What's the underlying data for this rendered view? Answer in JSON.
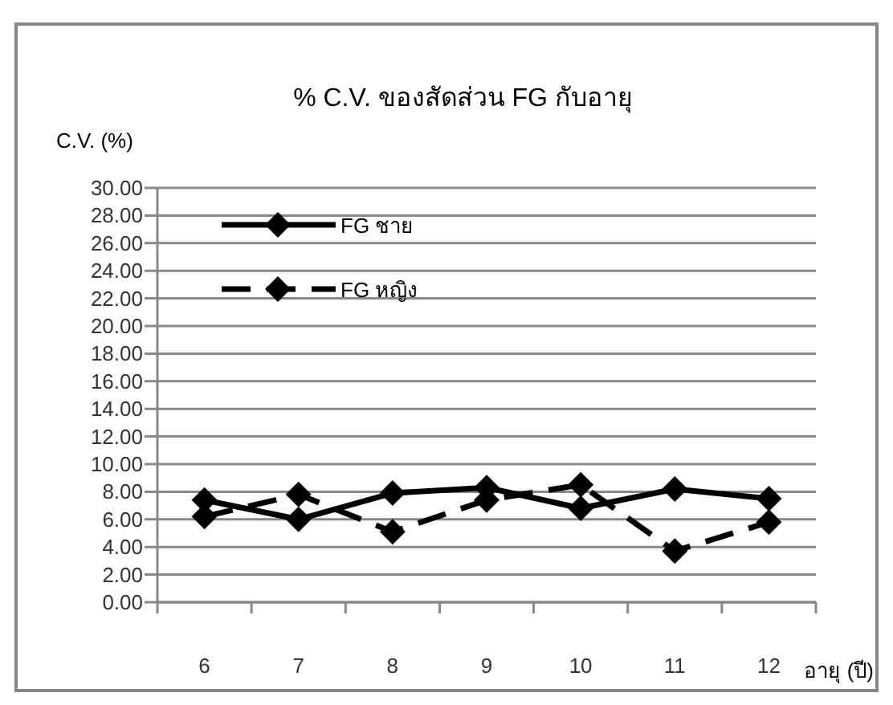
{
  "chart_data": {
    "type": "line",
    "title": "% C.V. ของสัดส่วน FG กับอายุ",
    "ylabel": "C.V. (%)",
    "xlabel": "อายุ (ปี)",
    "categories": [
      "6",
      "7",
      "8",
      "9",
      "10",
      "11",
      "12"
    ],
    "series": [
      {
        "name": "FG ชาย",
        "color": "#000000",
        "line_style": "solid",
        "values": [
          7.4,
          6.0,
          7.9,
          8.3,
          6.8,
          8.2,
          7.5
        ]
      },
      {
        "name": "FG หญิง",
        "color": "#000000",
        "line_style": "dashed",
        "values": [
          6.2,
          7.8,
          5.1,
          7.4,
          8.5,
          3.7,
          5.8
        ]
      }
    ],
    "ylim": [
      0,
      30
    ],
    "yticks": [
      {
        "value": 0,
        "label": "0.00"
      },
      {
        "value": 2,
        "label": "2.00"
      },
      {
        "value": 4,
        "label": "4.00"
      },
      {
        "value": 6,
        "label": "6.00"
      },
      {
        "value": 8,
        "label": "8.00"
      },
      {
        "value": 10,
        "label": "10.00"
      },
      {
        "value": 12,
        "label": "12.00"
      },
      {
        "value": 14,
        "label": "14.00"
      },
      {
        "value": 16,
        "label": "16.00"
      },
      {
        "value": 18,
        "label": "18.00"
      },
      {
        "value": 20,
        "label": "20.00"
      },
      {
        "value": 22,
        "label": "22.00"
      },
      {
        "value": 24,
        "label": "24.00"
      },
      {
        "value": 26,
        "label": "26.00"
      },
      {
        "value": 28,
        "label": "28.00"
      },
      {
        "value": 30,
        "label": "30.00"
      }
    ],
    "grid": "y",
    "legend": "top left",
    "marker": "diamond"
  }
}
